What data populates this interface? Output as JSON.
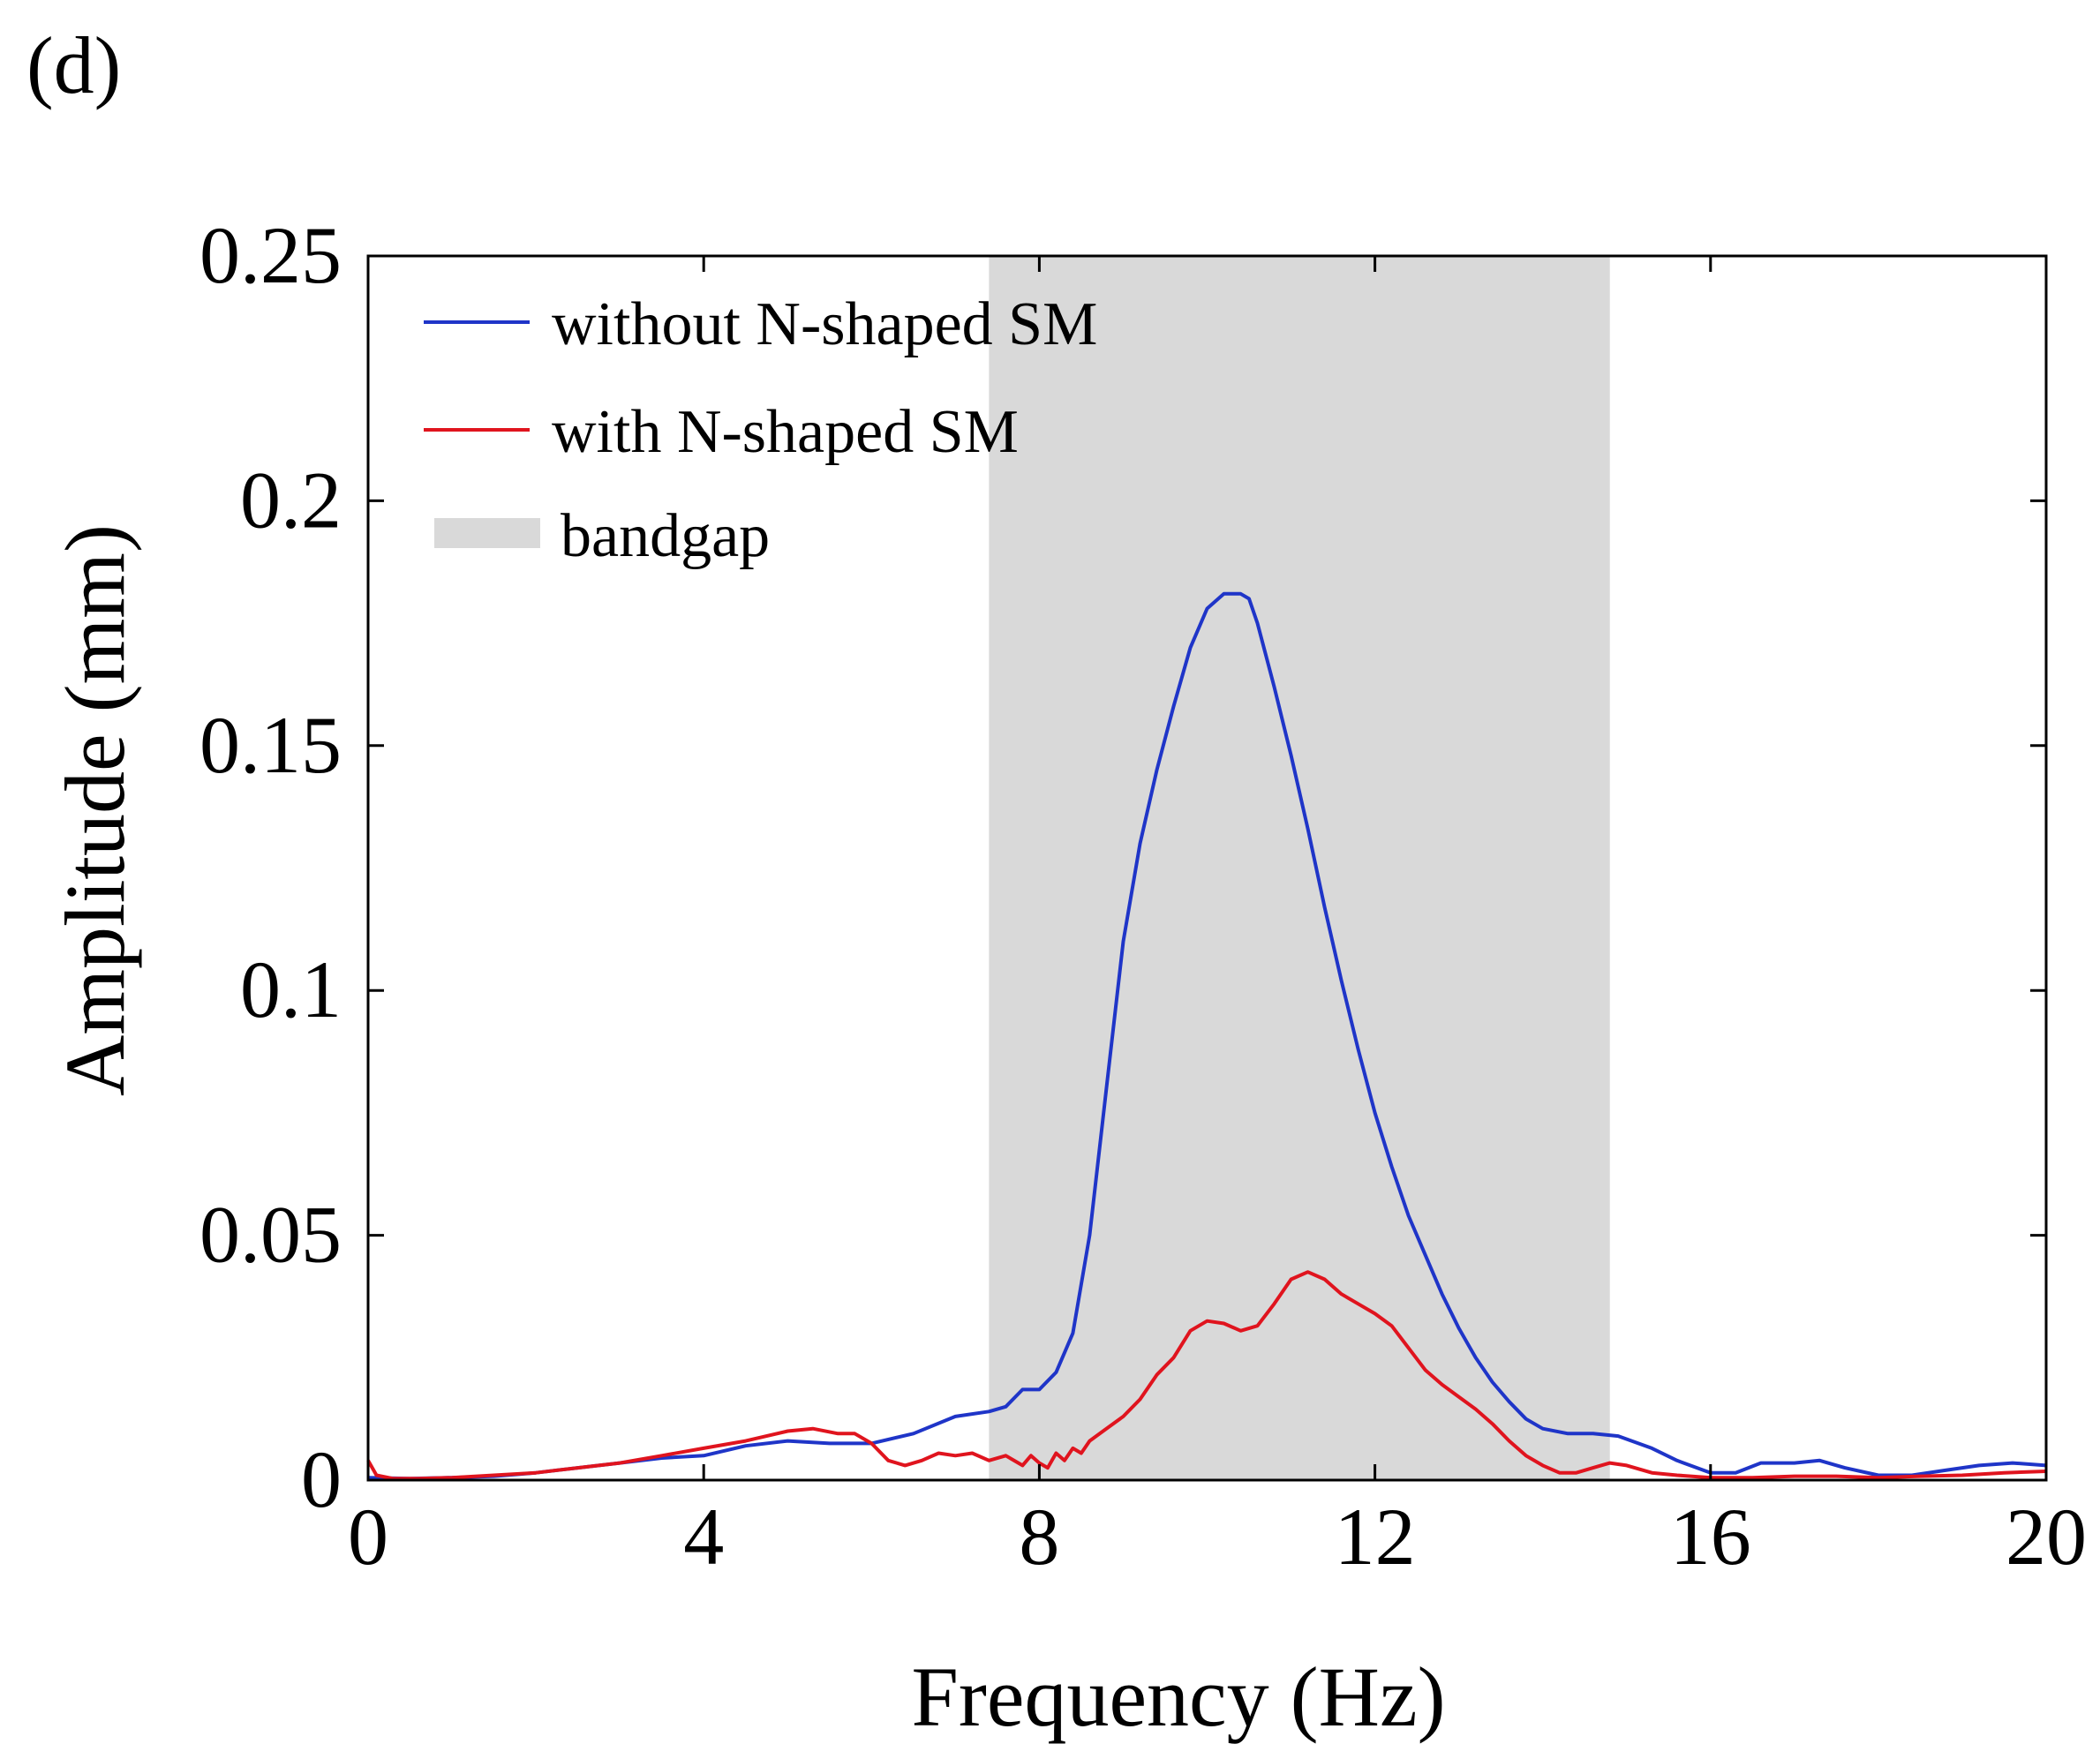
{
  "panel_label": "(d)",
  "chart_data": {
    "type": "line",
    "title": "",
    "xlabel": "Frequency (Hz)",
    "ylabel": "Amplitude (mm)",
    "xlim": [
      0,
      20
    ],
    "ylim": [
      0,
      0.25
    ],
    "xticks": [
      0,
      4,
      8,
      12,
      16,
      20
    ],
    "xtick_labels": [
      "0",
      "4",
      "8",
      "12",
      "16",
      "20"
    ],
    "yticks": [
      0,
      0.05,
      0.1,
      0.15,
      0.2,
      0.25
    ],
    "ytick_labels": [
      "0",
      "0.05",
      "0.1",
      "0.15",
      "0.2",
      "0.25"
    ],
    "grid": false,
    "legend_position": "top-left",
    "bandgap": {
      "label": "bandgap",
      "x_start": 7.4,
      "x_end": 14.8,
      "color": "#d9d9d9"
    },
    "series": [
      {
        "name": "without N-shaped SM",
        "color": "#1f35c8",
        "x": [
          0,
          0.5,
          1,
          1.5,
          2,
          2.5,
          3,
          3.5,
          4,
          4.5,
          5,
          5.5,
          6,
          6.5,
          7,
          7.4,
          7.6,
          7.8,
          8,
          8.2,
          8.4,
          8.6,
          8.8,
          9,
          9.2,
          9.4,
          9.6,
          9.8,
          10,
          10.2,
          10.4,
          10.5,
          10.6,
          10.8,
          11,
          11.2,
          11.4,
          11.6,
          11.8,
          12,
          12.2,
          12.4,
          12.6,
          12.8,
          13,
          13.2,
          13.4,
          13.6,
          13.8,
          14,
          14.3,
          14.6,
          14.9,
          15.3,
          15.6,
          16,
          16.3,
          16.6,
          17,
          17.3,
          17.6,
          18,
          18.4,
          18.8,
          19.2,
          19.6,
          20
        ],
        "y": [
          0.0005,
          0.0003,
          0.0005,
          0.0008,
          0.0015,
          0.0025,
          0.0035,
          0.0045,
          0.005,
          0.007,
          0.008,
          0.0075,
          0.0075,
          0.0095,
          0.013,
          0.014,
          0.015,
          0.0185,
          0.0185,
          0.022,
          0.03,
          0.05,
          0.08,
          0.11,
          0.13,
          0.145,
          0.158,
          0.17,
          0.178,
          0.181,
          0.181,
          0.18,
          0.175,
          0.162,
          0.148,
          0.133,
          0.117,
          0.102,
          0.088,
          0.075,
          0.064,
          0.054,
          0.046,
          0.038,
          0.031,
          0.025,
          0.02,
          0.016,
          0.0125,
          0.0105,
          0.0095,
          0.0095,
          0.009,
          0.0065,
          0.004,
          0.0015,
          0.0015,
          0.0035,
          0.0035,
          0.004,
          0.0025,
          0.001,
          0.001,
          0.002,
          0.003,
          0.0035,
          0.003
        ]
      },
      {
        "name": "with N-shaped SM",
        "color": "#e0141e",
        "x": [
          0,
          0.1,
          0.3,
          0.6,
          1,
          1.5,
          2,
          2.5,
          3,
          3.5,
          4,
          4.5,
          5,
          5.3,
          5.6,
          5.8,
          6,
          6.2,
          6.4,
          6.6,
          6.8,
          7,
          7.2,
          7.4,
          7.6,
          7.8,
          7.9,
          8,
          8.1,
          8.2,
          8.3,
          8.4,
          8.5,
          8.6,
          8.8,
          9,
          9.2,
          9.4,
          9.6,
          9.8,
          10,
          10.2,
          10.4,
          10.6,
          10.8,
          11,
          11.2,
          11.4,
          11.6,
          11.8,
          12,
          12.2,
          12.4,
          12.6,
          12.8,
          13,
          13.2,
          13.4,
          13.6,
          13.8,
          14,
          14.2,
          14.4,
          14.6,
          14.8,
          15,
          15.3,
          15.6,
          16,
          16.5,
          17,
          17.5,
          18,
          18.5,
          19,
          19.5,
          20
        ],
        "y": [
          0.004,
          0.001,
          0.0003,
          0.0003,
          0.0005,
          0.001,
          0.0015,
          0.0025,
          0.0035,
          0.005,
          0.0065,
          0.008,
          0.01,
          0.0105,
          0.0095,
          0.0095,
          0.0075,
          0.004,
          0.003,
          0.004,
          0.0055,
          0.005,
          0.0055,
          0.004,
          0.005,
          0.003,
          0.005,
          0.0035,
          0.0025,
          0.0055,
          0.004,
          0.0065,
          0.0055,
          0.008,
          0.0105,
          0.013,
          0.0165,
          0.0215,
          0.025,
          0.0305,
          0.0325,
          0.032,
          0.0305,
          0.0315,
          0.036,
          0.041,
          0.0425,
          0.041,
          0.038,
          0.036,
          0.034,
          0.0315,
          0.027,
          0.0225,
          0.0195,
          0.017,
          0.0145,
          0.0115,
          0.008,
          0.005,
          0.003,
          0.0015,
          0.0015,
          0.0025,
          0.0035,
          0.003,
          0.0015,
          0.001,
          0.0005,
          0.0005,
          0.0008,
          0.0008,
          0.0005,
          0.0008,
          0.001,
          0.0015,
          0.0018
        ]
      }
    ]
  }
}
